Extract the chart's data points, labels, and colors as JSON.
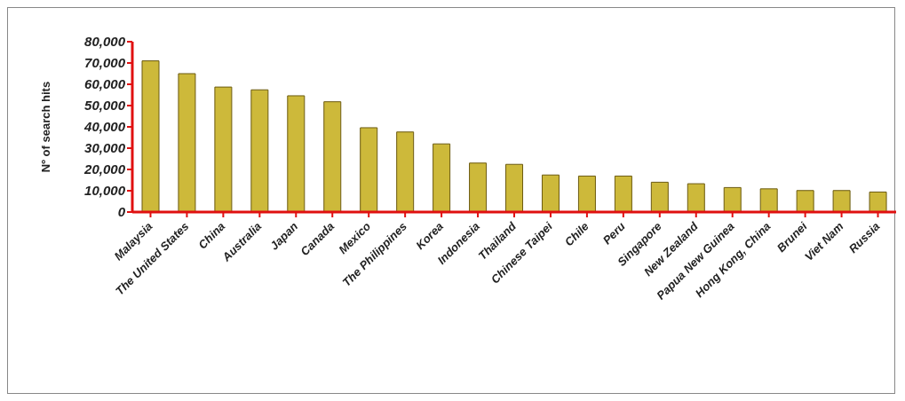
{
  "chart_data": {
    "type": "bar",
    "ylabel": "Nº of search hits",
    "categories": [
      "Malaysia",
      "The United States",
      "China",
      "Australia",
      "Japan",
      "Canada",
      "Mexico",
      "The Philippines",
      "Korea",
      "Indonesia",
      "Thailand",
      "Chinese Taipei",
      "Chile",
      "Peru",
      "Singapore",
      "New Zealand",
      "Papua New Guinea",
      "Hong Kong, China",
      "Brunei",
      "Viet Nam",
      "Russia"
    ],
    "values": [
      71000,
      65000,
      58700,
      57400,
      54600,
      51800,
      39600,
      37600,
      32000,
      23000,
      22400,
      17400,
      16900,
      16900,
      14000,
      13300,
      11500,
      10900,
      10100,
      10100,
      9400
    ],
    "color": "#cdb93a",
    "ylim": [
      0,
      80000
    ],
    "yticks": [
      0,
      {
        "value": 10000,
        "label": "10,000"
      },
      {
        "value": 20000,
        "label": "20,000"
      },
      {
        "value": 30000,
        "label": "30,000"
      },
      {
        "value": 40000,
        "label": "40,000"
      },
      {
        "value": 50000,
        "label": "50,000"
      },
      {
        "value": 60000,
        "label": "60,000"
      },
      {
        "value": 70000,
        "label": "70,000"
      },
      {
        "value": 80000,
        "label": "80,000"
      }
    ],
    "grid": false
  }
}
